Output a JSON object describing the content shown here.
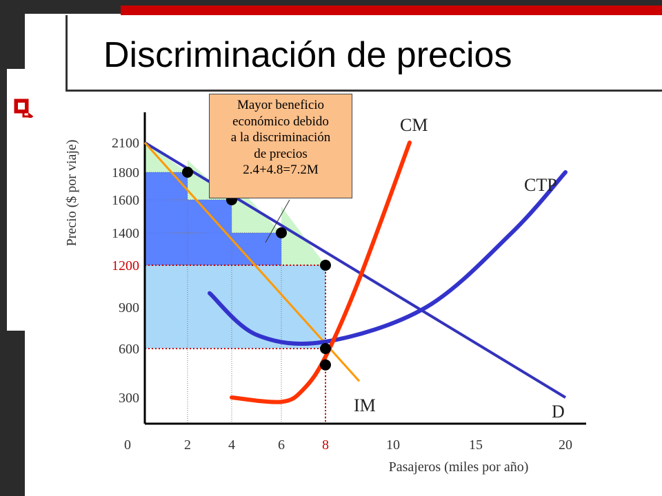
{
  "slide": {
    "title": "Discriminación de precios"
  },
  "annotation": {
    "lines": [
      "Mayor beneficio",
      "económico debido",
      "a la discriminación",
      "de precios",
      "2.4+4.8=7.2M"
    ]
  },
  "colors": {
    "accent": "#cc0000",
    "demand": "#3333bb",
    "cm": "#ff3300",
    "ctp": "#3333cc",
    "im": "#ff9900",
    "light_blue": "#aad8f8",
    "mid_blue": "#5b82ff",
    "light_green": "#ccf5cc",
    "annotation_bg": "#fbbf8a"
  },
  "chart_data": {
    "type": "line",
    "xlabel": "Pasajeros (miles por año)",
    "ylabel": "Precio ($ por viaje)",
    "x_ticks": [
      "0",
      "2",
      "4",
      "6",
      "8",
      "10",
      "15",
      "20"
    ],
    "y_ticks": [
      "2100",
      "1800",
      "1600",
      "1400",
      "1200",
      "900",
      "600",
      "300"
    ],
    "highlight_x_tick": "8",
    "highlight_y_tick": "1200",
    "series": [
      {
        "name": "D",
        "points": [
          [
            0,
            2100
          ],
          [
            20,
            300
          ]
        ]
      },
      {
        "name": "IM",
        "points": [
          [
            0,
            2100
          ],
          [
            9,
            400
          ]
        ]
      },
      {
        "name": "CM",
        "points": [
          [
            4,
            300
          ],
          [
            6,
            250
          ],
          [
            7,
            350
          ],
          [
            8,
            550
          ],
          [
            9,
            1100
          ],
          [
            11,
            2100
          ]
        ]
      },
      {
        "name": "CTP",
        "points": [
          [
            3,
            1000
          ],
          [
            5,
            700
          ],
          [
            8,
            650
          ],
          [
            12,
            900
          ],
          [
            17,
            1400
          ],
          [
            20,
            1800
          ]
        ]
      }
    ],
    "price_steps": [
      {
        "x0": 0,
        "x1": 2,
        "price": 1800
      },
      {
        "x0": 2,
        "x1": 4,
        "price": 1600
      },
      {
        "x0": 4,
        "x1": 6,
        "price": 1400
      },
      {
        "x0": 6,
        "x1": 8,
        "price": 1200
      }
    ],
    "points": [
      {
        "x": 2,
        "y": 1800
      },
      {
        "x": 4,
        "y": 1600
      },
      {
        "x": 6,
        "y": 1400
      },
      {
        "x": 8,
        "y": 1200
      },
      {
        "x": 8,
        "y": 600
      },
      {
        "x": 8,
        "y": 500
      }
    ]
  }
}
